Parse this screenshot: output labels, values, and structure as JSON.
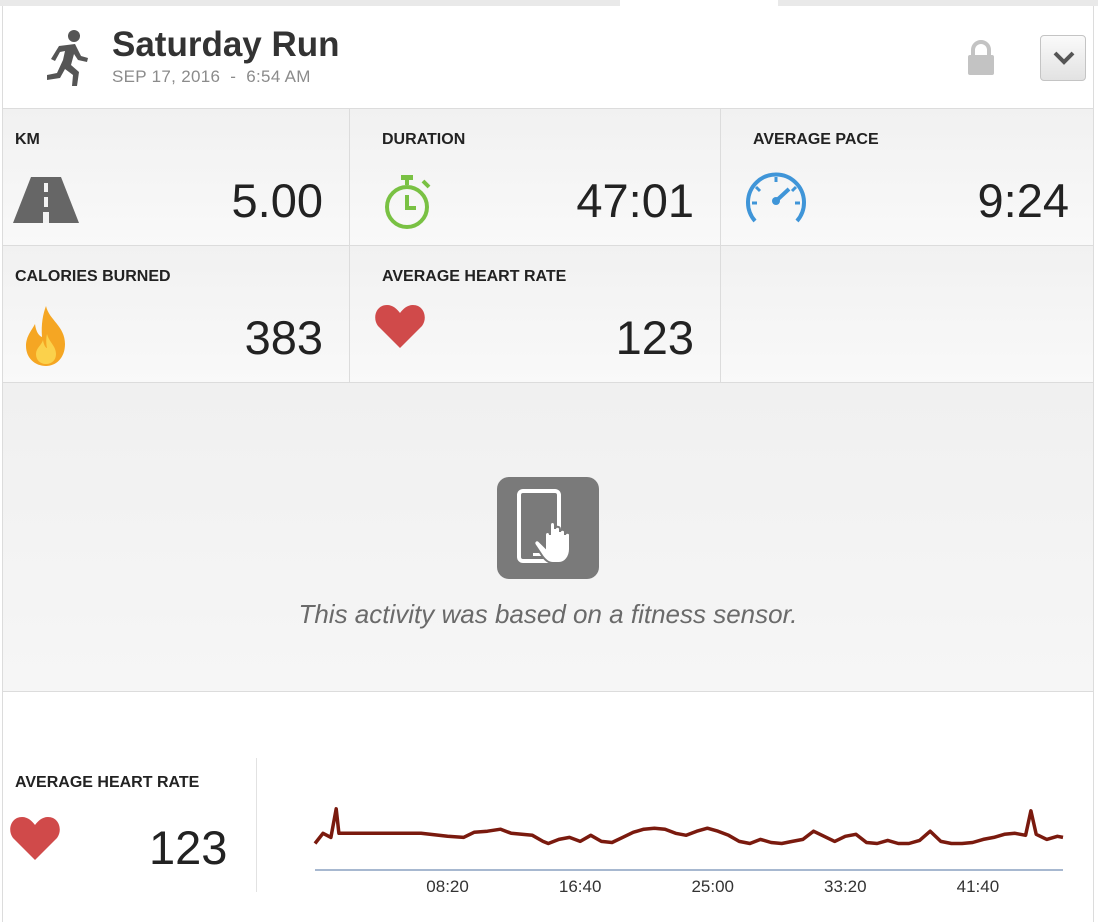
{
  "header": {
    "title": "Saturday Run",
    "date": "SEP 17, 2016",
    "separator": "-",
    "time": "6:54 AM",
    "activity_icon": "running-person-icon",
    "lock_icon": "lock-icon",
    "dropdown_icon": "chevron-down-icon"
  },
  "stats": [
    {
      "label": "KM",
      "value": "5.00",
      "icon": "road-icon"
    },
    {
      "label": "DURATION",
      "value": "47:01",
      "icon": "stopwatch-icon"
    },
    {
      "label": "AVERAGE PACE",
      "value": "9:24",
      "icon": "speedometer-icon"
    },
    {
      "label": "CALORIES BURNED",
      "value": "383",
      "icon": "flame-icon"
    },
    {
      "label": "AVERAGE HEART RATE",
      "value": "123",
      "icon": "heart-icon"
    }
  ],
  "sensor": {
    "icon": "phone-touch-icon",
    "message": "This activity was based on a fitness sensor."
  },
  "heart_rate_panel": {
    "label": "AVERAGE HEART RATE",
    "value": "123",
    "icon": "heart-icon"
  },
  "colors": {
    "line": "#7a1a0e",
    "axis": "#8aa0c0",
    "heart": "#d04a4a",
    "stopwatch": "#79c143",
    "speedometer": "#3f95d8",
    "flame": "#f5a623"
  },
  "chart_data": {
    "type": "line",
    "title": "",
    "xlabel": "",
    "ylabel": "",
    "x_unit": "mm:ss",
    "xticks": [
      "08:20",
      "16:40",
      "25:00",
      "33:20",
      "41:40"
    ],
    "xlim": [
      0,
      2821
    ],
    "ylim": [
      80,
      180
    ],
    "series": [
      {
        "x": [
          0,
          30,
          60,
          80,
          90,
          120,
          200,
          300,
          400,
          500,
          560,
          600,
          650,
          700,
          740,
          780,
          820,
          860,
          880,
          920,
          960,
          1000,
          1040,
          1080,
          1120,
          1160,
          1200,
          1240,
          1280,
          1320,
          1360,
          1400,
          1440,
          1480,
          1520,
          1560,
          1600,
          1640,
          1680,
          1720,
          1760,
          1800,
          1840,
          1880,
          1920,
          1960,
          2000,
          2040,
          2080,
          2120,
          2160,
          2200,
          2240,
          2280,
          2320,
          2360,
          2400,
          2440,
          2480,
          2520,
          2560,
          2600,
          2640,
          2680,
          2700,
          2720,
          2760,
          2800,
          2821
        ],
        "y": [
          106,
          116,
          112,
          140,
          116,
          116,
          116,
          116,
          116,
          113,
          112,
          117,
          118,
          120,
          116,
          115,
          114,
          108,
          106,
          110,
          112,
          108,
          114,
          108,
          107,
          112,
          117,
          120,
          121,
          120,
          116,
          114,
          118,
          121,
          118,
          114,
          108,
          106,
          110,
          107,
          106,
          108,
          110,
          118,
          113,
          108,
          113,
          115,
          107,
          106,
          109,
          106,
          106,
          109,
          118,
          108,
          106,
          106,
          107,
          110,
          112,
          115,
          116,
          114,
          138,
          115,
          110,
          113,
          112
        ]
      }
    ],
    "grid": false,
    "legend": "none"
  }
}
